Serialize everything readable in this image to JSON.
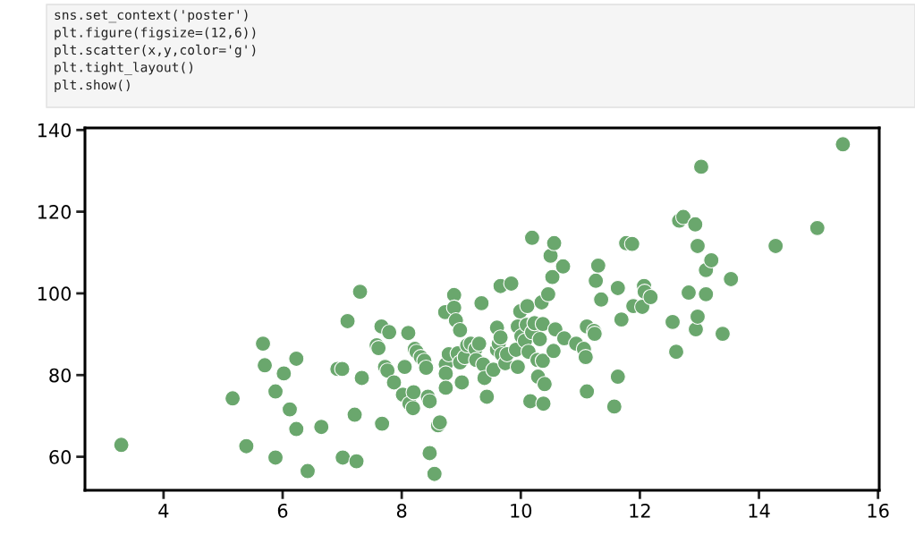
{
  "chart_data": {
    "type": "scatter",
    "color": "#6aa76d",
    "marker": "circle",
    "grid": false,
    "legend": false,
    "annotations": [
      "sns.set_context('poster')",
      "plt.figure(figsize=(12,6))",
      "plt.scatter(x,y,color='g')",
      "plt.tight_layout()",
      "plt.show()"
    ],
    "xlim": [
      2.68,
      16.02
    ],
    "ylim": [
      51.8,
      140.5
    ],
    "xticks": [
      4,
      6,
      8,
      10,
      12,
      14,
      16
    ],
    "yticks": [
      60,
      80,
      100,
      120,
      140
    ],
    "x": [
      3.29,
      5.16,
      5.39,
      5.67,
      5.7,
      6.02,
      5.88,
      5.88,
      6.12,
      6.23,
      6.23,
      6.42,
      6.65,
      6.92,
      7.0,
      7.01,
      7.09,
      7.21,
      7.24,
      7.3,
      7.33,
      7.58,
      7.61,
      7.66,
      7.67,
      7.72,
      7.79,
      7.76,
      7.87,
      8.02,
      8.05,
      8.11,
      8.13,
      8.19,
      8.2,
      8.22,
      8.25,
      8.32,
      8.38,
      8.41,
      8.44,
      8.47,
      8.47,
      8.55,
      8.61,
      8.64,
      8.73,
      8.74,
      8.74,
      8.74,
      8.79,
      8.88,
      8.88,
      8.91,
      8.94,
      8.98,
      8.98,
      9.01,
      9.06,
      9.1,
      9.16,
      9.24,
      9.25,
      9.3,
      9.34,
      9.37,
      9.39,
      9.43,
      9.54,
      9.6,
      9.6,
      9.63,
      9.66,
      9.66,
      9.68,
      9.74,
      9.77,
      9.84,
      9.92,
      9.95,
      9.95,
      9.99,
      10.01,
      10.07,
      10.1,
      10.11,
      10.13,
      10.16,
      10.19,
      10.19,
      10.23,
      10.28,
      10.29,
      10.32,
      10.35,
      10.37,
      10.37,
      10.38,
      10.4,
      10.46,
      10.53,
      10.5,
      10.55,
      10.56,
      10.58,
      10.71,
      10.73,
      10.93,
      11.06,
      11.09,
      11.11,
      11.11,
      11.23,
      11.24,
      11.26,
      11.3,
      11.35,
      11.57,
      11.63,
      11.63,
      11.69,
      11.77,
      11.87,
      11.89,
      12.04,
      12.07,
      12.08,
      12.18,
      12.55,
      12.61,
      12.66,
      12.73,
      12.82,
      12.93,
      12.97,
      12.94,
      12.97,
      13.03,
      13.11,
      13.11,
      13.2,
      13.39,
      13.53,
      14.28,
      14.98,
      15.41
    ],
    "values": [
      62.9,
      74.3,
      62.6,
      87.7,
      82.4,
      80.4,
      76.0,
      59.8,
      71.6,
      84.0,
      66.8,
      56.5,
      67.3,
      81.5,
      81.5,
      59.8,
      93.2,
      70.3,
      58.9,
      100.4,
      79.3,
      87.3,
      86.6,
      91.9,
      68.1,
      82.0,
      90.5,
      81.1,
      78.2,
      75.2,
      82.0,
      90.3,
      73.0,
      71.9,
      75.8,
      86.4,
      85.7,
      84.4,
      83.5,
      81.8,
      74.7,
      73.6,
      60.9,
      55.8,
      67.7,
      68.4,
      95.4,
      82.6,
      80.4,
      76.9,
      85.1,
      99.6,
      96.5,
      93.4,
      85.3,
      91.0,
      83.1,
      78.2,
      84.4,
      87.3,
      87.7,
      86.4,
      83.7,
      87.7,
      97.6,
      82.6,
      79.3,
      74.7,
      81.3,
      91.6,
      86.2,
      87.7,
      101.8,
      89.2,
      85.1,
      82.9,
      85.1,
      102.4,
      86.2,
      91.9,
      82.0,
      95.6,
      89.5,
      88.4,
      92.3,
      96.9,
      85.7,
      73.6,
      113.6,
      90.5,
      92.7,
      83.7,
      79.6,
      88.8,
      97.8,
      92.5,
      83.5,
      73.0,
      77.8,
      99.8,
      104.0,
      109.2,
      85.9,
      112.3,
      91.2,
      106.6,
      89.0,
      87.7,
      86.4,
      84.4,
      91.9,
      76.0,
      90.8,
      90.1,
      103.1,
      106.8,
      98.5,
      72.3,
      79.6,
      101.3,
      93.6,
      112.3,
      112.1,
      96.9,
      96.7,
      101.8,
      100.4,
      99.1,
      93.0,
      85.7,
      117.8,
      118.7,
      100.2,
      116.9,
      111.6,
      91.2,
      94.3,
      131.0,
      99.8,
      105.7,
      108.1,
      90.1,
      103.5,
      111.6,
      116.0,
      136.5
    ]
  }
}
